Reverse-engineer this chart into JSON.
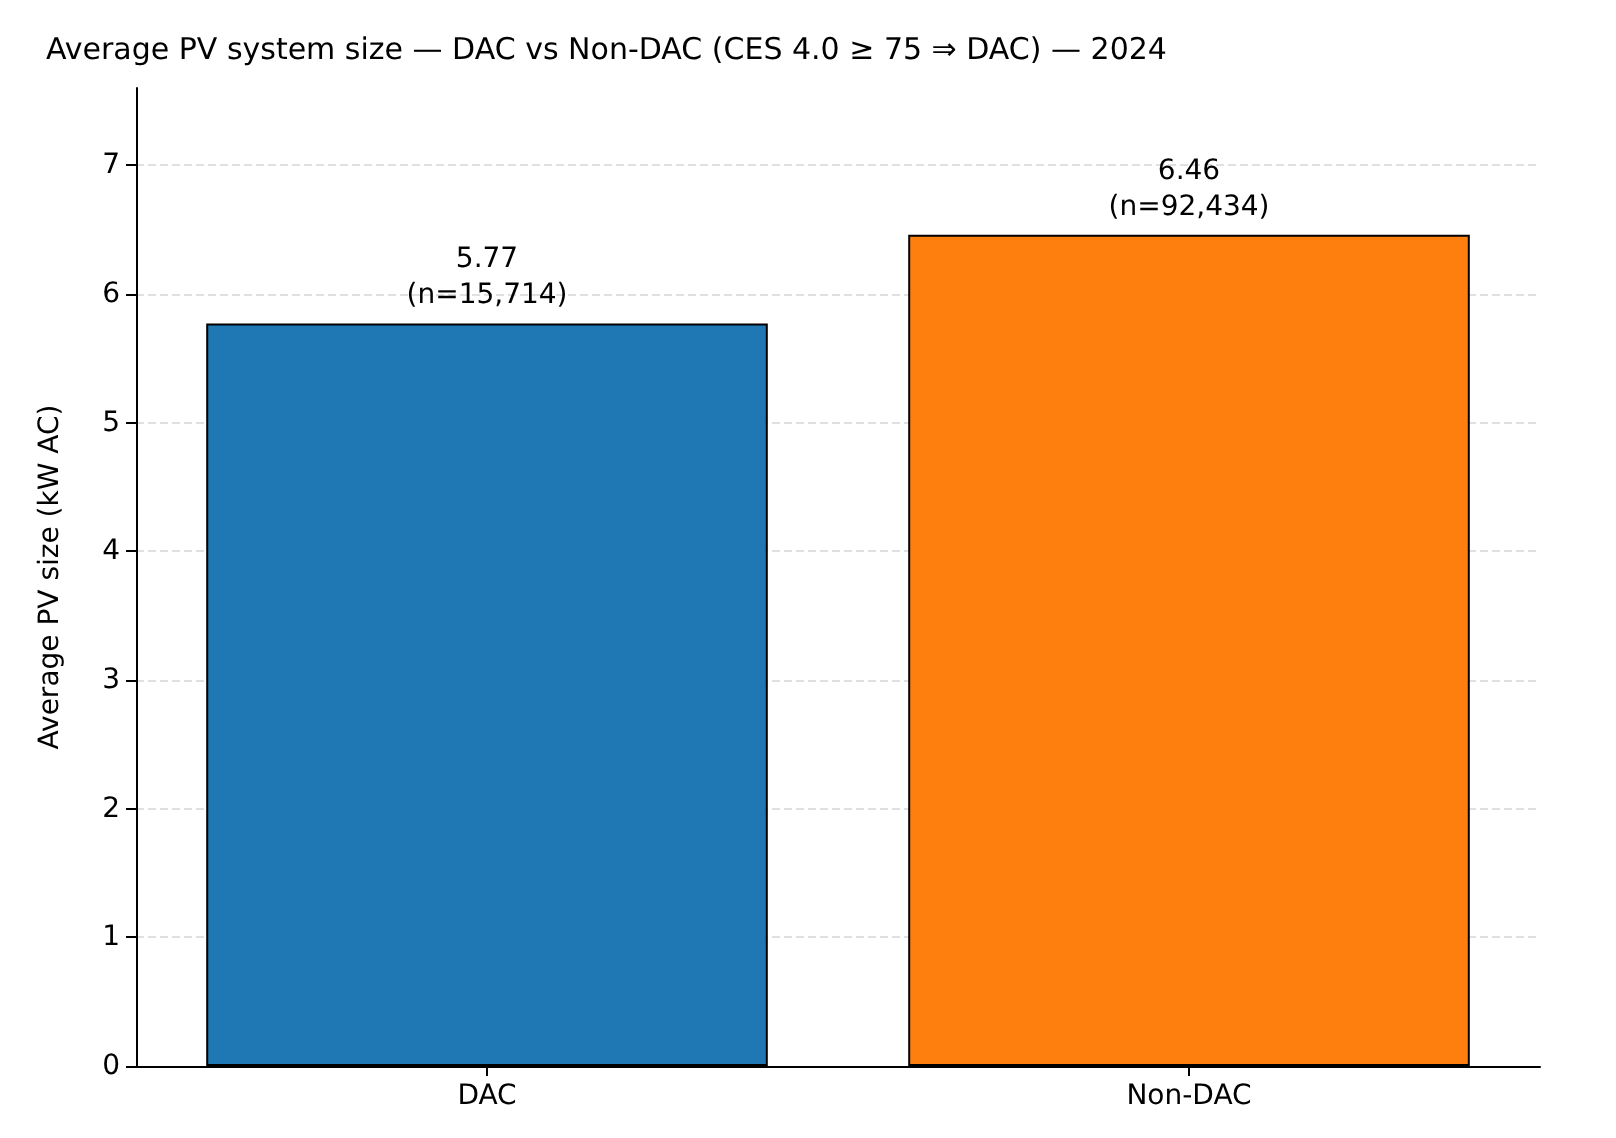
{
  "chart_data": {
    "type": "bar",
    "title": "Average PV system size — DAC vs Non-DAC (CES 4.0 ≥ 75 ⇒ DAC) — 2024",
    "ylabel": "Average PV size (kW AC)",
    "categories": [
      "DAC",
      "Non-DAC"
    ],
    "values": [
      5.77,
      6.46
    ],
    "colors": [
      "#1f77b4",
      "#ff7f0e"
    ],
    "value_labels": [
      "5.77\n(n=15,714)",
      "6.46\n(n=92,434)"
    ],
    "ylim": [
      0,
      7.6
    ],
    "yticks": [
      0,
      1,
      2,
      3,
      4,
      5,
      6,
      7
    ],
    "grid": "y"
  }
}
